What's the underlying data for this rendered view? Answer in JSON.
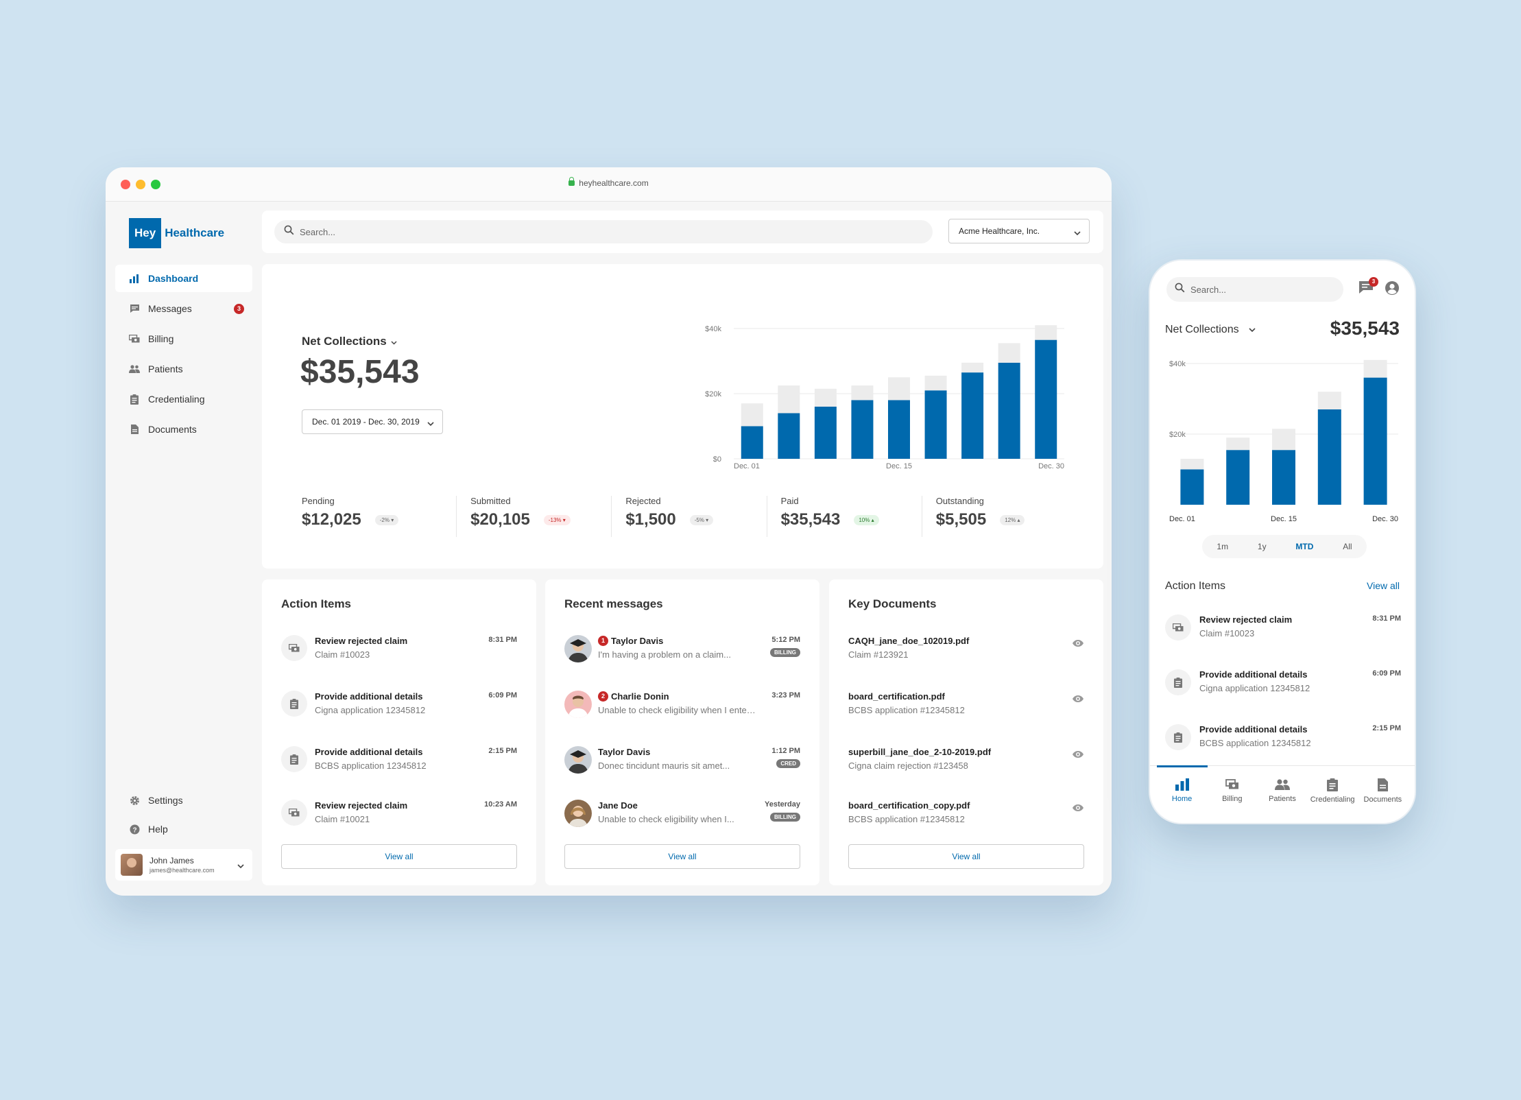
{
  "browser": {
    "url": "heyhealthcare.com"
  },
  "brand": {
    "part1": "Hey",
    "part2": "Healthcare",
    "color": "#0069ad"
  },
  "sidebar": {
    "items": [
      {
        "label": "Dashboard",
        "icon": "bar-chart-icon",
        "active": true
      },
      {
        "label": "Messages",
        "icon": "chat-icon",
        "badge": "3"
      },
      {
        "label": "Billing",
        "icon": "money-icon"
      },
      {
        "label": "Patients",
        "icon": "people-icon"
      },
      {
        "label": "Credentialing",
        "icon": "clipboard-icon"
      },
      {
        "label": "Documents",
        "icon": "document-icon"
      }
    ],
    "bottom": [
      {
        "label": "Settings",
        "icon": "gear-icon"
      },
      {
        "label": "Help",
        "icon": "help-icon"
      }
    ],
    "user": {
      "name": "John James",
      "email": "james@healthcare.com"
    }
  },
  "topbar": {
    "search_placeholder": "Search...",
    "org": "Acme Healthcare, Inc."
  },
  "net_collections": {
    "title": "Net Collections",
    "value": "$35,543",
    "date_range": "Dec. 01 2019 - Dec. 30, 2019"
  },
  "stats": [
    {
      "label": "Pending",
      "value": "$12,025",
      "change": "-2% ▾",
      "tone": "neutral"
    },
    {
      "label": "Submitted",
      "value": "$20,105",
      "change": "-13% ▾",
      "tone": "neg"
    },
    {
      "label": "Rejected",
      "value": "$1,500",
      "change": "-5% ▾",
      "tone": "neutral"
    },
    {
      "label": "Paid",
      "value": "$35,543",
      "change": "10% ▴",
      "tone": "pos"
    },
    {
      "label": "Outstanding",
      "value": "$5,505",
      "change": "12% ▴",
      "tone": "neutral"
    }
  ],
  "chart_data": [
    {
      "type": "bar",
      "stacked": true,
      "x_ticks": [
        "Dec. 01",
        "Dec. 15",
        "Dec. 30"
      ],
      "y_ticks": [
        "$40k",
        "$20k",
        "$0"
      ],
      "ylim": [
        0,
        40000
      ],
      "grid": true,
      "series": [
        {
          "values": [
            10000,
            14000,
            16000,
            18000,
            18000,
            21000,
            26500,
            29500,
            36500
          ],
          "color": "#0069ad"
        },
        {
          "values": [
            7000,
            8500,
            5500,
            4500,
            7000,
            4500,
            3000,
            6000,
            4500
          ],
          "color": "#ececec"
        }
      ],
      "xlabel": "",
      "ylabel": ""
    },
    {
      "type": "bar",
      "stacked": true,
      "x_ticks": [
        "Dec. 01",
        "Dec. 15",
        "Dec. 30"
      ],
      "y_ticks": [
        "$40k",
        "$20k"
      ],
      "ylim": [
        0,
        40000
      ],
      "grid": true,
      "series": [
        {
          "values": [
            10000,
            15500,
            15500,
            27000,
            36000
          ],
          "color": "#0069ad"
        },
        {
          "values": [
            3000,
            3500,
            6000,
            5000,
            5000
          ],
          "color": "#ececec"
        }
      ],
      "xlabel": "",
      "ylabel": ""
    }
  ],
  "action_items": {
    "title": "Action Items",
    "view_all": "View all",
    "rows": [
      {
        "title": "Review rejected claim",
        "sub": "Claim #10023",
        "time": "8:31 PM",
        "icon": "money-icon"
      },
      {
        "title": "Provide additional details",
        "sub": "Cigna application 12345812",
        "time": "6:09 PM",
        "icon": "clipboard-icon"
      },
      {
        "title": "Provide additional details",
        "sub": "BCBS application 12345812",
        "time": "2:15 PM",
        "icon": "clipboard-icon"
      },
      {
        "title": "Review rejected claim",
        "sub": "Claim #10021",
        "time": "10:23 AM",
        "icon": "money-icon"
      }
    ]
  },
  "messages": {
    "title": "Recent messages",
    "view_all": "View all",
    "rows": [
      {
        "name": "Taylor Davis",
        "unread": "1",
        "preview": "I'm having a problem on a claim...",
        "time": "5:12 PM",
        "tag": "BILLING"
      },
      {
        "name": "Charlie Donin",
        "unread": "2",
        "preview": "Unable to check eligibility when I enter...",
        "time": "3:23 PM",
        "tag": ""
      },
      {
        "name": "Taylor Davis",
        "unread": "",
        "preview": "Donec tincidunt mauris sit amet...",
        "time": "1:12 PM",
        "tag": "CRED"
      },
      {
        "name": "Jane Doe",
        "unread": "",
        "preview": "Unable to check eligibility when I...",
        "time": "Yesterday",
        "tag": "BILLING"
      }
    ]
  },
  "documents": {
    "title": "Key Documents",
    "view_all": "View all",
    "rows": [
      {
        "name": "CAQH_jane_doe_102019.pdf",
        "sub": "Claim #123921"
      },
      {
        "name": "board_certification.pdf",
        "sub": "BCBS application #12345812"
      },
      {
        "name": "superbill_jane_doe_2-10-2019.pdf",
        "sub": "Cigna claim rejection #123458"
      },
      {
        "name": "board_certification_copy.pdf",
        "sub": "BCBS application #12345812"
      }
    ]
  },
  "phone": {
    "search_placeholder": "Search...",
    "msg_badge": "3",
    "nc_title": "Net Collections",
    "nc_value": "$35,543",
    "ranges": [
      "1m",
      "1y",
      "MTD",
      "All"
    ],
    "active_range": "MTD",
    "action_title": "Action Items",
    "view_all": "View all",
    "rows": [
      {
        "title": "Review rejected claim",
        "sub": "Claim #10023",
        "time": "8:31 PM"
      },
      {
        "title": "Provide additional details",
        "sub": "Cigna application 12345812",
        "time": "6:09 PM"
      },
      {
        "title": "Provide additional details",
        "sub": "BCBS application 12345812",
        "time": "2:15 PM"
      }
    ],
    "tabs": [
      "Home",
      "Billing",
      "Patients",
      "Credentialing",
      "Documents"
    ]
  }
}
